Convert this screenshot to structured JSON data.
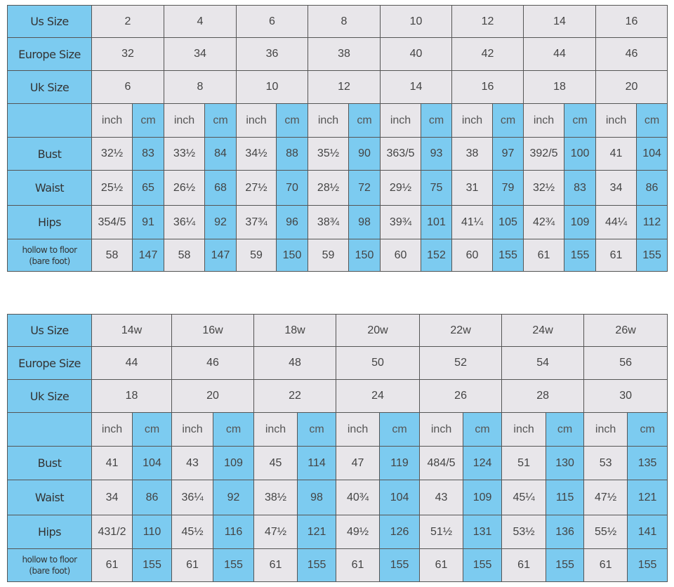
{
  "tables": [
    {
      "us_label": "Us Size",
      "eu_label": "Europe Size",
      "uk_label": "Uk Size",
      "us": [
        "2",
        "4",
        "6",
        "8",
        "10",
        "12",
        "14",
        "16"
      ],
      "eu": [
        "32",
        "34",
        "36",
        "38",
        "40",
        "42",
        "44",
        "46"
      ],
      "uk": [
        "6",
        "8",
        "10",
        "12",
        "14",
        "16",
        "18",
        "20"
      ],
      "unit_inch": "inch",
      "unit_cm": "cm",
      "rows": [
        {
          "label": "Bust",
          "values": [
            "32½",
            "83",
            "33½",
            "84",
            "34½",
            "88",
            "35½",
            "90",
            "363/5",
            "93",
            "38",
            "97",
            "392/5",
            "100",
            "41",
            "104"
          ]
        },
        {
          "label": "Waist",
          "values": [
            "25½",
            "65",
            "26½",
            "68",
            "27½",
            "70",
            "28½",
            "72",
            "29½",
            "75",
            "31",
            "79",
            "32½",
            "83",
            "34",
            "86"
          ]
        },
        {
          "label": "Hips",
          "values": [
            "354/5",
            "91",
            "36¼",
            "92",
            "37¾",
            "96",
            "38¾",
            "98",
            "39¾",
            "101",
            "41¼",
            "105",
            "42¾",
            "109",
            "44¼",
            "112"
          ]
        },
        {
          "label": "hollow to floor\n(bare foot)",
          "values": [
            "58",
            "147",
            "58",
            "147",
            "59",
            "150",
            "59",
            "150",
            "60",
            "152",
            "60",
            "155",
            "61",
            "155",
            "61",
            "155"
          ]
        }
      ]
    },
    {
      "us_label": "Us Size",
      "eu_label": "Europe Size",
      "uk_label": "Uk Size",
      "us": [
        "14w",
        "16w",
        "18w",
        "20w",
        "22w",
        "24w",
        "26w"
      ],
      "eu": [
        "44",
        "46",
        "48",
        "50",
        "52",
        "54",
        "56"
      ],
      "uk": [
        "18",
        "20",
        "22",
        "24",
        "26",
        "28",
        "30"
      ],
      "unit_inch": "inch",
      "unit_cm": "cm",
      "rows": [
        {
          "label": "Bust",
          "values": [
            "41",
            "104",
            "43",
            "109",
            "45",
            "114",
            "47",
            "119",
            "484/5",
            "124",
            "51",
            "130",
            "53",
            "135"
          ]
        },
        {
          "label": "Waist",
          "values": [
            "34",
            "86",
            "36¼",
            "92",
            "38½",
            "98",
            "40¾",
            "104",
            "43",
            "109",
            "45¼",
            "115",
            "47½",
            "121"
          ]
        },
        {
          "label": "Hips",
          "values": [
            "431/2",
            "110",
            "45½",
            "116",
            "47½",
            "121",
            "49½",
            "126",
            "51½",
            "131",
            "53½",
            "136",
            "55½",
            "141"
          ]
        },
        {
          "label": "hollow to floor\n(bare foot)",
          "values": [
            "61",
            "155",
            "61",
            "155",
            "61",
            "155",
            "61",
            "155",
            "61",
            "155",
            "61",
            "155",
            "61",
            "155"
          ]
        }
      ]
    }
  ]
}
